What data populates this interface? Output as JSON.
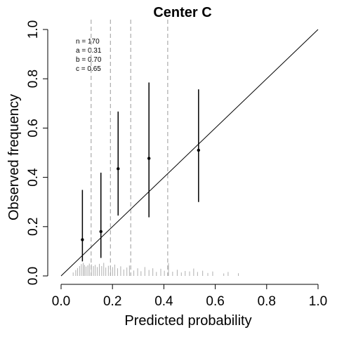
{
  "chart_data": {
    "type": "scatter",
    "title": "Center C",
    "xlabel": "Predicted probability",
    "ylabel": "Observed frequency",
    "xlim": [
      0,
      1
    ],
    "ylim": [
      0,
      1
    ],
    "x_ticks": [
      "0.0",
      "0.2",
      "0.4",
      "0.6",
      "0.8",
      "1.0"
    ],
    "y_ticks": [
      "0.0",
      "0.2",
      "0.4",
      "0.6",
      "0.8",
      "1.0"
    ],
    "stats": [
      "n = 170",
      "a = 0.31",
      "b = 0.70",
      "c = 0.65"
    ],
    "reference_line": {
      "from": [
        0,
        0
      ],
      "to": [
        1,
        1
      ]
    },
    "group_boundaries": [
      0.117,
      0.192,
      0.271,
      0.415
    ],
    "points": [
      {
        "x": 0.083,
        "y": 0.147,
        "lower": 0.059,
        "upper": 0.349
      },
      {
        "x": 0.155,
        "y": 0.18,
        "lower": 0.073,
        "upper": 0.419
      },
      {
        "x": 0.222,
        "y": 0.435,
        "lower": 0.245,
        "upper": 0.667
      },
      {
        "x": 0.342,
        "y": 0.477,
        "lower": 0.238,
        "upper": 0.785
      },
      {
        "x": 0.535,
        "y": 0.51,
        "lower": 0.3,
        "upper": 0.757
      }
    ],
    "rug_x": [
      0.047,
      0.057,
      0.064,
      0.072,
      0.079,
      0.086,
      0.091,
      0.097,
      0.104,
      0.11,
      0.118,
      0.126,
      0.133,
      0.141,
      0.149,
      0.158,
      0.166,
      0.174,
      0.184,
      0.193,
      0.201,
      0.209,
      0.22,
      0.232,
      0.244,
      0.256,
      0.266,
      0.283,
      0.298,
      0.311,
      0.326,
      0.342,
      0.357,
      0.371,
      0.388,
      0.402,
      0.418,
      0.434,
      0.452,
      0.468,
      0.483,
      0.5,
      0.516,
      0.531,
      0.551,
      0.571,
      0.59,
      0.633,
      0.65,
      0.69
    ],
    "rug_h": [
      0.014,
      0.024,
      0.032,
      0.04,
      0.048,
      0.053,
      0.045,
      0.038,
      0.043,
      0.05,
      0.047,
      0.04,
      0.045,
      0.036,
      0.049,
      0.04,
      0.053,
      0.034,
      0.041,
      0.028,
      0.036,
      0.046,
      0.031,
      0.039,
      0.026,
      0.034,
      0.042,
      0.022,
      0.031,
      0.019,
      0.036,
      0.024,
      0.031,
      0.016,
      0.029,
      0.021,
      0.052,
      0.017,
      0.025,
      0.014,
      0.02,
      0.018,
      0.03,
      0.016,
      0.021,
      0.012,
      0.018,
      0.01,
      0.016,
      0.011
    ]
  }
}
